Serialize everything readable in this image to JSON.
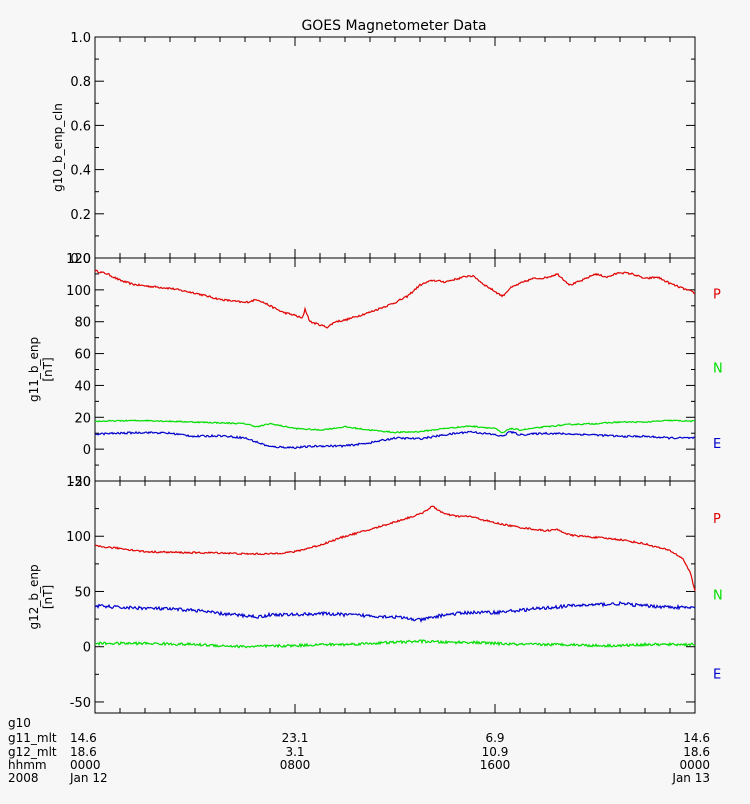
{
  "title": "GOES Magnetometer Data",
  "colors": {
    "background": "#f7f7f7",
    "axes": "#000000",
    "P": "#e00000",
    "N": "#00dd00",
    "E": "#0000cc"
  },
  "chart_data": [
    {
      "type": "line",
      "ylabel": "g10_b_enp_cln",
      "ylim": [
        0,
        1
      ],
      "yticks": [
        "0.0",
        "0.2",
        "0.4",
        "0.6",
        "0.8",
        "1.0"
      ],
      "series": []
    },
    {
      "type": "line",
      "ylabel": "g11_b_enp",
      "yunit": "[nT]",
      "ylim": [
        -20,
        120
      ],
      "yticks": [
        "-20",
        "0",
        "20",
        "40",
        "60",
        "80",
        "100",
        "120"
      ],
      "series": [
        {
          "name": "P",
          "color": "#e00000",
          "noise": 0.6,
          "points": [
            [
              0,
              112
            ],
            [
              0.5,
              110
            ],
            [
              1,
              106
            ],
            [
              1.5,
              103.5
            ],
            [
              2,
              102.5
            ],
            [
              3,
              101
            ],
            [
              4,
              98
            ],
            [
              5,
              94
            ],
            [
              6,
              92
            ],
            [
              6.5,
              94
            ],
            [
              7,
              90
            ],
            [
              7.5,
              86
            ],
            [
              8,
              84
            ],
            [
              8.3,
              82
            ],
            [
              8.4,
              88
            ],
            [
              8.6,
              80
            ],
            [
              9,
              78
            ],
            [
              9.3,
              76.5
            ],
            [
              9.6,
              80
            ],
            [
              10,
              81
            ],
            [
              11,
              86
            ],
            [
              12,
              92
            ],
            [
              12.5,
              96
            ],
            [
              13,
              103
            ],
            [
              13.5,
              106
            ],
            [
              14,
              105
            ],
            [
              14.5,
              107
            ],
            [
              15,
              109
            ],
            [
              15.2,
              108
            ],
            [
              15.5,
              104
            ],
            [
              16,
              99
            ],
            [
              16.3,
              96
            ],
            [
              16.6,
              101
            ],
            [
              17,
              104
            ],
            [
              17.5,
              107
            ],
            [
              18,
              107.5
            ],
            [
              18.5,
              110
            ],
            [
              19,
              103
            ],
            [
              19.5,
              106
            ],
            [
              20,
              110
            ],
            [
              20.5,
              108
            ],
            [
              21,
              111
            ],
            [
              21.5,
              110
            ],
            [
              22,
              107
            ],
            [
              22.5,
              108
            ],
            [
              23,
              104
            ],
            [
              23.5,
              101
            ],
            [
              24,
              98
            ]
          ]
        },
        {
          "name": "N",
          "color": "#00dd00",
          "noise": 0.4,
          "points": [
            [
              0,
              17.5
            ],
            [
              2,
              18
            ],
            [
              4,
              17
            ],
            [
              6,
              16
            ],
            [
              6.5,
              14
            ],
            [
              7,
              16
            ],
            [
              8,
              13
            ],
            [
              9,
              12
            ],
            [
              10,
              14
            ],
            [
              11,
              12
            ],
            [
              12,
              10.5
            ],
            [
              13,
              11
            ],
            [
              14,
              13
            ],
            [
              15,
              14.5
            ],
            [
              16,
              13
            ],
            [
              16.3,
              10
            ],
            [
              16.6,
              13
            ],
            [
              17,
              12
            ],
            [
              18,
              14
            ],
            [
              19,
              15.5
            ],
            [
              20,
              16
            ],
            [
              21,
              17
            ],
            [
              22,
              17
            ],
            [
              23,
              18
            ],
            [
              24,
              17.5
            ]
          ]
        },
        {
          "name": "E",
          "color": "#0000cc",
          "noise": 0.6,
          "points": [
            [
              0,
              9.5
            ],
            [
              2,
              10.5
            ],
            [
              3,
              10
            ],
            [
              4,
              8
            ],
            [
              5,
              8.5
            ],
            [
              6,
              7
            ],
            [
              7,
              1.5
            ],
            [
              8,
              1
            ],
            [
              9,
              2
            ],
            [
              10,
              2
            ],
            [
              11,
              4
            ],
            [
              12,
              7
            ],
            [
              13,
              6.5
            ],
            [
              14,
              9
            ],
            [
              15,
              11
            ],
            [
              16,
              9
            ],
            [
              16.3,
              8
            ],
            [
              16.6,
              11
            ],
            [
              17,
              9
            ],
            [
              18,
              10
            ],
            [
              19,
              9.5
            ],
            [
              20,
              9
            ],
            [
              21,
              8
            ],
            [
              22,
              8
            ],
            [
              23,
              7
            ],
            [
              24,
              7
            ]
          ]
        }
      ]
    },
    {
      "type": "line",
      "ylabel": "g12_b_enp",
      "yunit": "[nT]",
      "ylim": [
        -60,
        150
      ],
      "yticks": [
        "-50",
        "0",
        "50",
        "100",
        "150"
      ],
      "series": [
        {
          "name": "P",
          "color": "#e00000",
          "noise": 0.8,
          "points": [
            [
              0,
              91
            ],
            [
              1,
              89
            ],
            [
              2,
              86
            ],
            [
              3,
              85.5
            ],
            [
              4,
              85
            ],
            [
              5,
              85
            ],
            [
              6,
              84
            ],
            [
              7,
              84
            ],
            [
              8,
              86
            ],
            [
              9,
              92
            ],
            [
              10,
              100
            ],
            [
              11,
              106
            ],
            [
              12,
              113
            ],
            [
              13,
              120
            ],
            [
              13.5,
              127
            ],
            [
              14,
              120
            ],
            [
              14.5,
              118
            ],
            [
              15,
              118
            ],
            [
              16,
              112
            ],
            [
              17,
              108
            ],
            [
              18,
              105
            ],
            [
              18.5,
              106
            ],
            [
              19,
              101
            ],
            [
              20,
              99
            ],
            [
              21,
              97
            ],
            [
              22,
              93
            ],
            [
              23,
              87
            ],
            [
              23.5,
              80
            ],
            [
              23.8,
              68
            ],
            [
              24,
              50
            ]
          ]
        },
        {
          "name": "N",
          "color": "#00dd00",
          "noise": 1.2,
          "points": [
            [
              0,
              3
            ],
            [
              2,
              3
            ],
            [
              4,
              2
            ],
            [
              6,
              0
            ],
            [
              8,
              1
            ],
            [
              9,
              2
            ],
            [
              10,
              2
            ],
            [
              11,
              3
            ],
            [
              12,
              4
            ],
            [
              13,
              5
            ],
            [
              14,
              4
            ],
            [
              15,
              4
            ],
            [
              16,
              3
            ],
            [
              17,
              2
            ],
            [
              18,
              2
            ],
            [
              19,
              2
            ],
            [
              20,
              1
            ],
            [
              21,
              1
            ],
            [
              22,
              2
            ],
            [
              23,
              2
            ],
            [
              24,
              2
            ]
          ]
        },
        {
          "name": "E",
          "color": "#0000cc",
          "noise": 1.5,
          "points": [
            [
              0,
              37
            ],
            [
              1,
              35.5
            ],
            [
              2,
              35
            ],
            [
              3,
              34
            ],
            [
              4,
              33
            ],
            [
              5,
              30
            ],
            [
              6.6,
              27
            ],
            [
              7,
              29
            ],
            [
              8,
              29
            ],
            [
              9,
              30
            ],
            [
              10,
              29
            ],
            [
              11,
              28
            ],
            [
              12,
              27
            ],
            [
              13,
              24
            ],
            [
              14,
              29
            ],
            [
              15,
              31
            ],
            [
              16,
              31
            ],
            [
              17,
              33
            ],
            [
              18,
              35
            ],
            [
              19,
              37
            ],
            [
              20,
              38
            ],
            [
              21,
              39
            ],
            [
              22,
              37
            ],
            [
              23,
              36
            ],
            [
              24,
              35
            ]
          ]
        }
      ]
    }
  ],
  "xaxis": {
    "rows": [
      {
        "label": "g10",
        "values": [
          "",
          "",
          "",
          ""
        ]
      },
      {
        "label": "g11_mlt",
        "values": [
          "14.6",
          "23.1",
          "6.9",
          "14.6"
        ]
      },
      {
        "label": "g12_mlt",
        "values": [
          "18.6",
          "3.1",
          "10.9",
          "18.6"
        ]
      },
      {
        "label": "hhmm",
        "values": [
          "0000",
          "0800",
          "1600",
          "0000"
        ]
      },
      {
        "label": "2008",
        "values": [
          "Jan 12",
          "",
          "",
          "Jan 13"
        ]
      }
    ],
    "major_hours": [
      0,
      8,
      16,
      24
    ],
    "range_hours": [
      0,
      24
    ]
  }
}
